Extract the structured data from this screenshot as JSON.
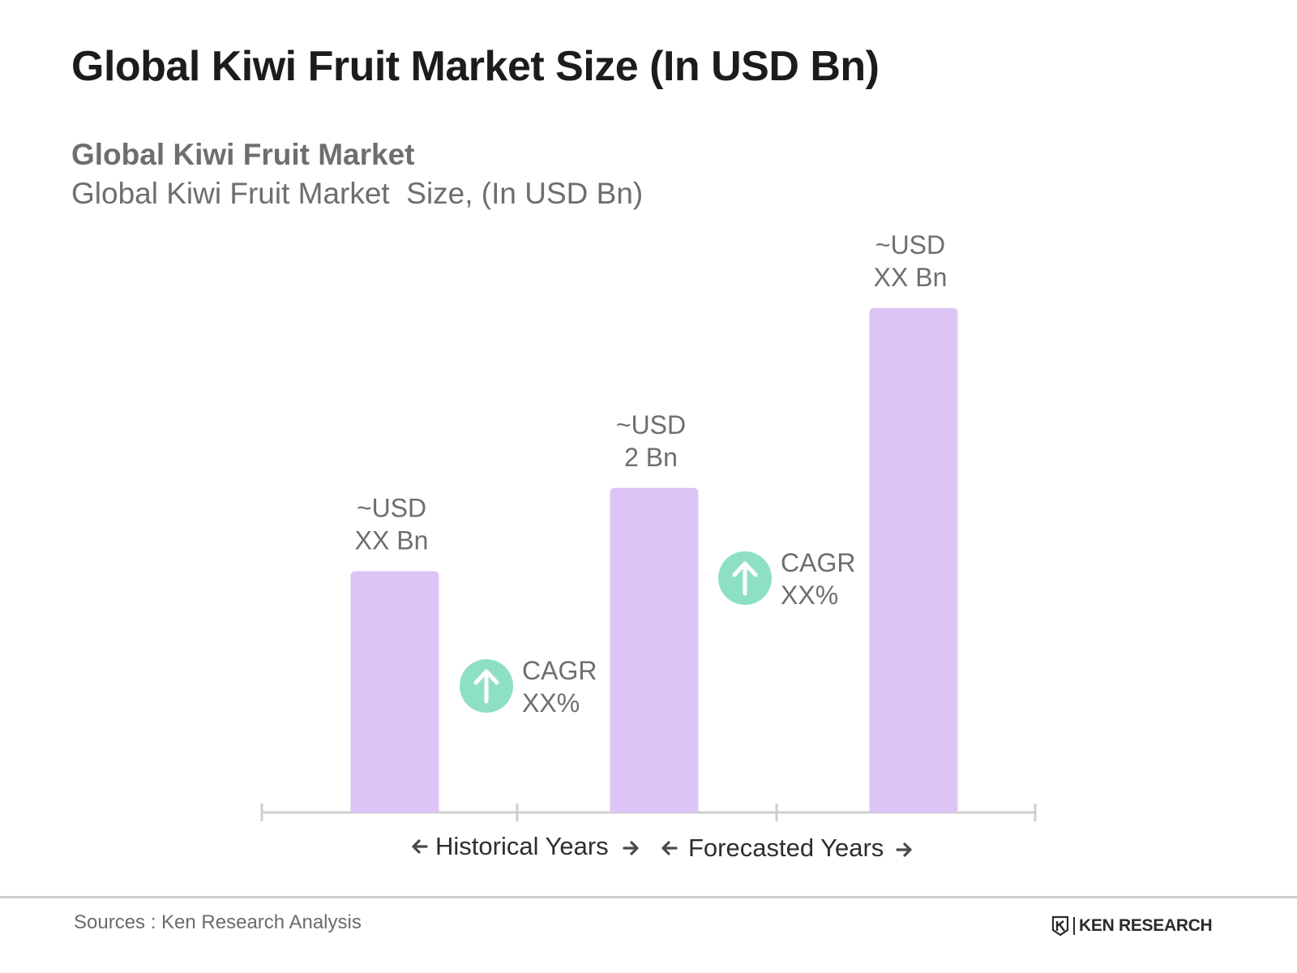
{
  "header": {
    "title": "Global Kiwi Fruit Market Size (In USD Bn)",
    "subtitle_1": "Global Kiwi Fruit Market",
    "subtitle_2": "Global Kiwi Fruit Market  Size, (In USD Bn)"
  },
  "chart_data": {
    "type": "bar",
    "categories": [
      "",
      "",
      ""
    ],
    "values": [
      1.1,
      1.48,
      2.3
    ],
    "data_labels": [
      [
        "~USD",
        "XX Bn"
      ],
      [
        "~USD",
        "2 Bn"
      ],
      [
        "~USD",
        "XX Bn"
      ]
    ],
    "cagr_annotations": [
      [
        "CAGR",
        "XX%"
      ],
      [
        "CAGR",
        "XX%"
      ]
    ],
    "periods": [
      "Historical Years",
      "Forecasted Years"
    ],
    "ylim": [
      0,
      2.3
    ],
    "grid": false,
    "colors": {
      "bar": "#dcc4f7",
      "cagr_icon": "#8ee0c5",
      "axis": "#cfcfcf",
      "label": "#6e6e6e"
    }
  },
  "icons": {
    "cagr": "arrow-up-icon",
    "period_left": "arrow-left-icon",
    "period_right": "arrow-right-icon"
  },
  "footer": {
    "source": "Sources : Ken Research Analysis",
    "logo_text": "KEN RESEARCH"
  }
}
